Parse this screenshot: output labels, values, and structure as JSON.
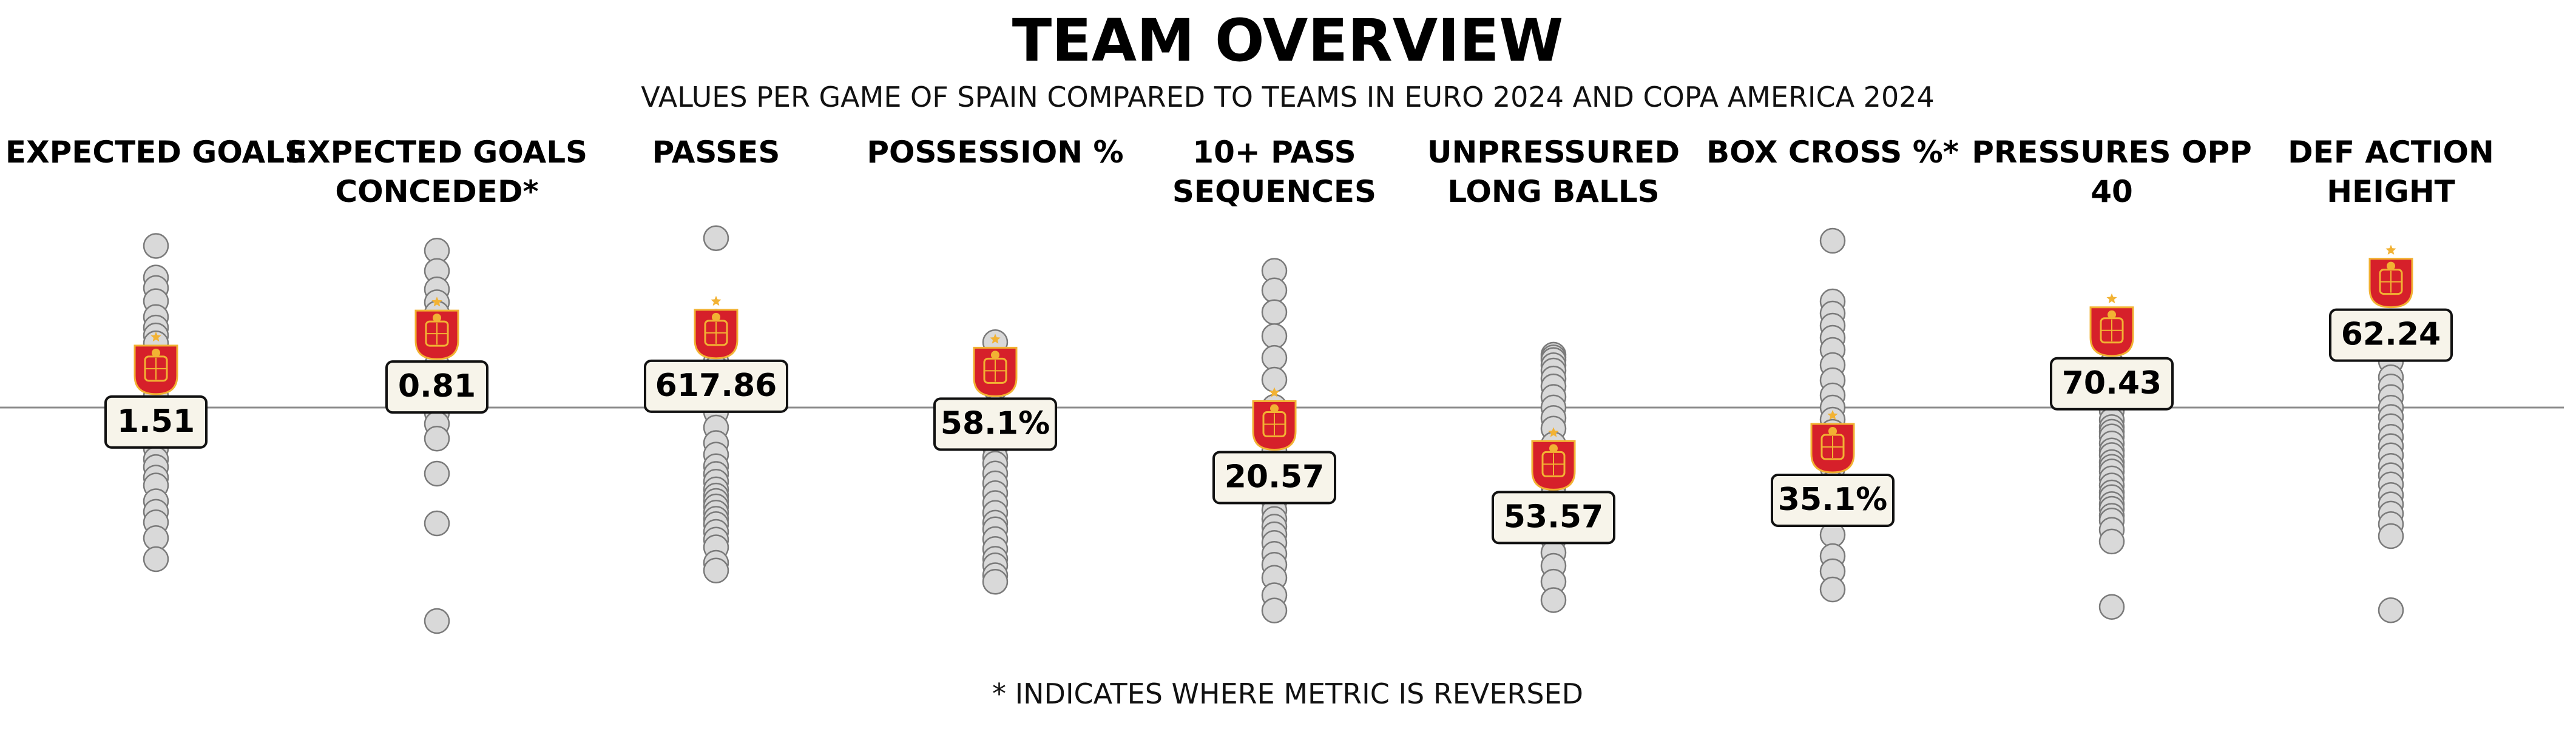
{
  "chart_data": {
    "type": "scatter",
    "title": "TEAM OVERVIEW",
    "subtitle": "VALUES PER GAME OF SPAIN COMPARED TO TEAMS IN EURO 2024 AND COPA AMERICA 2024",
    "footnote": "* INDICATES WHERE METRIC IS REVERSED",
    "colors": {
      "point_fill": "#d9d9d9",
      "point_stroke": "#7a7a7a",
      "label_bg": "#f7f4ea",
      "crest_red": "#d6202a",
      "crest_gold": "#f2b233",
      "axis_line": "#8c8c8c"
    },
    "icons": [
      "spain-crest-icon"
    ],
    "metrics": [
      {
        "label": "EXPECTED GOALS",
        "reversed": false,
        "highlight_value": 1.51,
        "highlight_display": "1.51",
        "ylim": [
          0.39,
          2.21
        ],
        "values": [
          1.99,
          1.87,
          1.83,
          1.78,
          1.72,
          1.68,
          1.65,
          1.62,
          1.55,
          1.48,
          1.45,
          1.42,
          1.36,
          1.33,
          1.28,
          1.25,
          1.22,
          1.18,
          1.15,
          1.11,
          1.08,
          1.02,
          0.98,
          0.94,
          0.88,
          0.8
        ]
      },
      {
        "label": "EXPECTED GOALS CONCEDED*",
        "reversed": true,
        "highlight_value": 0.81,
        "highlight_display": "0.81",
        "ylim": [
          2.6,
          0.0
        ],
        "values": [
          0.34,
          0.45,
          0.55,
          0.62,
          0.68,
          0.74,
          0.8,
          0.88,
          0.96,
          1.02,
          1.08,
          1.12,
          1.17,
          1.22,
          1.28,
          1.36,
          1.55,
          1.82,
          2.35
        ]
      },
      {
        "label": "PASSES",
        "reversed": false,
        "highlight_value": 617.86,
        "highlight_display": "617.86",
        "ylim": [
          190,
          810
        ],
        "values": [
          745,
          637,
          618,
          597,
          586,
          577,
          560,
          540,
          520,
          500,
          480,
          465,
          450,
          440,
          430,
          420,
          412,
          405,
          398,
          390,
          382,
          375,
          365,
          355,
          345,
          325,
          315
        ]
      },
      {
        "label": "POSSESSION %",
        "reversed": false,
        "highlight_value": 58.1,
        "highlight_display": "58.1%",
        "ylim": [
          13.5,
          86.5
        ],
        "values": [
          63.0,
          60.0,
          58.5,
          56.0,
          53.0,
          50.5,
          48.5,
          47.0,
          45.5,
          44.5,
          43.0,
          41.5,
          40.0,
          38.5,
          37.0,
          35.5,
          34.5,
          33.0,
          31.5,
          30.0,
          29.0,
          27.5,
          26.5
        ]
      },
      {
        "label": "10+ PASS SEQUENCES",
        "reversed": false,
        "highlight_value": 20.57,
        "highlight_display": "20.57",
        "ylim": [
          -1.4,
          42.6
        ],
        "values": [
          35.0,
          33.2,
          31.2,
          29.0,
          27.0,
          25.0,
          22.5,
          21.0,
          19.5,
          18.5,
          17.0,
          16.0,
          15.2,
          14.5,
          13.8,
          13.0,
          12.2,
          11.5,
          10.8,
          10.0,
          9.0,
          8.0,
          6.8,
          5.2,
          3.8
        ]
      },
      {
        "label": "UNPRESSURED LONG BALLS",
        "reversed": false,
        "highlight_value": 53.57,
        "highlight_display": "53.57",
        "ylim": [
          15.8,
          106.6
        ],
        "values": [
          75.0,
          74.5,
          74.0,
          73.0,
          72.0,
          70.5,
          69.0,
          67.0,
          65.0,
          63.0,
          61.0,
          58.0,
          56.0,
          54.5,
          53.0,
          51.5,
          50.0,
          48.5,
          47.0,
          45.0,
          43.5,
          42.0,
          40.0,
          37.5,
          35.0,
          32.0,
          28.5
        ]
      },
      {
        "label": "BOX CROSS %*",
        "reversed": true,
        "highlight_value": 35.1,
        "highlight_display": "35.1%",
        "ylim": [
          70.8,
          -8.2
        ],
        "values": [
          0.5,
          10.5,
          12.5,
          14.5,
          16.5,
          18.5,
          21.0,
          23.5,
          26.0,
          28.0,
          30.0,
          32.0,
          34.0,
          36.0,
          38.0,
          40.5,
          43.0,
          46.0,
          49.0,
          52.5,
          55.0,
          58.0
        ]
      },
      {
        "label": "PRESSURES OPP 40",
        "reversed": false,
        "highlight_value": 70.43,
        "highlight_display": "70.43",
        "ylim": [
          -0.9,
          101.7
        ],
        "values": [
          73.0,
          64.0,
          60.0,
          56.0,
          54.0,
          52.0,
          50.5,
          49.5,
          48.5,
          47.0,
          45.5,
          44.5,
          43.0,
          42.0,
          41.0,
          39.5,
          38.0,
          36.5,
          35.5,
          34.0,
          33.0,
          31.5,
          30.5,
          28.5,
          26.0,
          12.0
        ]
      },
      {
        "label": "DEF ACTION HEIGHT",
        "reversed": false,
        "highlight_value": 62.24,
        "highlight_display": "62.24",
        "ylim": [
          33.4,
          69.6
        ],
        "values": [
          62.9,
          58.1,
          57.2,
          56.5,
          55.3,
          54.6,
          53.8,
          53.0,
          52.3,
          51.6,
          50.8,
          50.1,
          49.4,
          48.6,
          47.9,
          47.2,
          46.4,
          45.7,
          45.0,
          44.2,
          43.3,
          37.7
        ]
      }
    ]
  }
}
